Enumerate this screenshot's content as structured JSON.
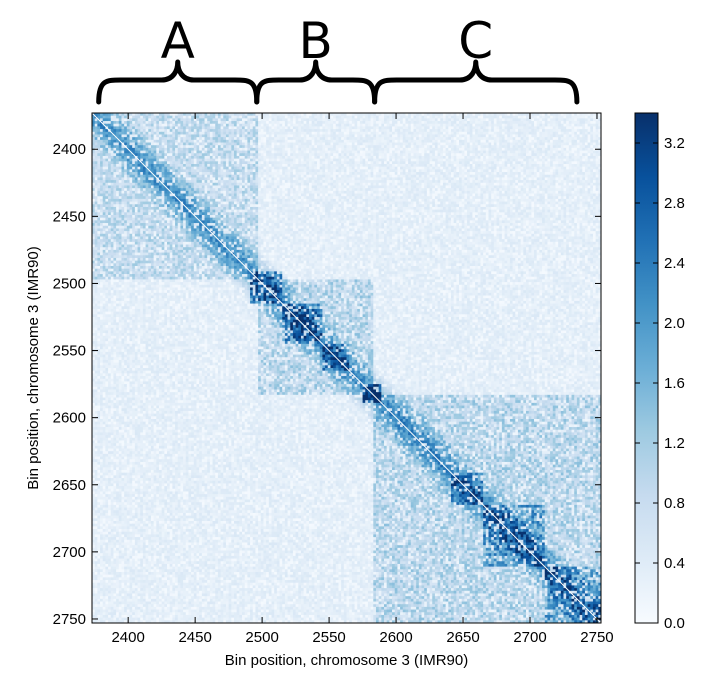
{
  "chart_data": {
    "type": "heatmap",
    "title": "",
    "xlabel": "Bin position, chromosome 3 (IMR90)",
    "ylabel": "Bin position, chromosome 3 (IMR90)",
    "xlim": [
      2373,
      2753
    ],
    "ylim": [
      2753,
      2373
    ],
    "x_ticks": [
      2400,
      2450,
      2500,
      2550,
      2600,
      2650,
      2700,
      2750
    ],
    "y_ticks": [
      2400,
      2450,
      2500,
      2550,
      2600,
      2650,
      2700,
      2750
    ],
    "colormap": "Blues",
    "colorbar": {
      "min": 0.0,
      "max": 3.4,
      "ticks": [
        "0.0",
        "0.4",
        "0.8",
        "1.2",
        "1.6",
        "2.0",
        "2.4",
        "2.8",
        "3.2"
      ]
    },
    "grid": false,
    "domains": [
      {
        "start": 2373,
        "end": 2497,
        "level": 0.9
      },
      {
        "start": 2497,
        "end": 2583,
        "level": 1.0
      },
      {
        "start": 2583,
        "end": 2753,
        "level": 1.0
      },
      {
        "start": 2490,
        "end": 2515,
        "level": 1.9
      },
      {
        "start": 2515,
        "end": 2545,
        "level": 2.0
      },
      {
        "start": 2526,
        "end": 2536,
        "level": 2.6
      },
      {
        "start": 2545,
        "end": 2565,
        "level": 1.8
      },
      {
        "start": 2575,
        "end": 2588,
        "level": 2.6
      },
      {
        "start": 2640,
        "end": 2665,
        "level": 1.7
      },
      {
        "start": 2665,
        "end": 2710,
        "level": 1.8
      },
      {
        "start": 2710,
        "end": 2753,
        "level": 1.7
      }
    ],
    "diagonal_value": 3.4
  },
  "annotations": [
    {
      "label": "A",
      "start": 2378,
      "end": 2496
    },
    {
      "label": "B",
      "start": 2496,
      "end": 2584
    },
    {
      "label": "C",
      "start": 2584,
      "end": 2735
    }
  ],
  "colors": {
    "cmap": [
      "#f7fbff",
      "#deebf7",
      "#c6dbef",
      "#9ecae1",
      "#6baed6",
      "#4292c6",
      "#2171b5",
      "#08519c",
      "#08306b"
    ]
  }
}
